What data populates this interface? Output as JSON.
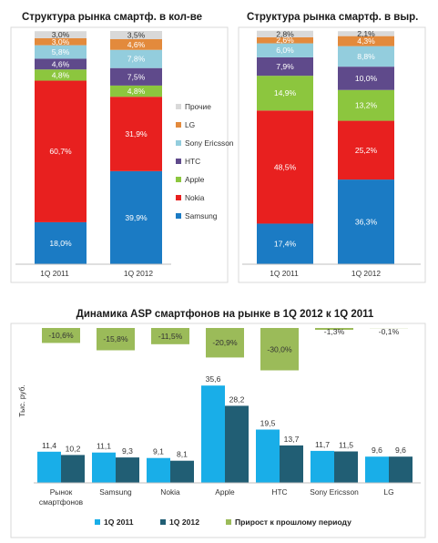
{
  "colors": {
    "samsung": "#1b7bc4",
    "nokia": "#e8201f",
    "apple": "#8cc63e",
    "htc": "#5f4a8b",
    "sony": "#93cddd",
    "lg": "#e38a3c",
    "other": "#d9d9d9",
    "asp_q1_2011": "#19aee8",
    "asp_q1_2012": "#215e74",
    "asp_growth": "#9bbb59"
  },
  "chart_data": [
    {
      "type": "bar",
      "stacked": true,
      "title": "Структура рынка смартф. в кол-ве",
      "categories": [
        "1Q 2011",
        "1Q 2012"
      ],
      "series": [
        {
          "name": "Samsung",
          "color_key": "samsung",
          "values": [
            18.0,
            39.9
          ],
          "labels": [
            "18,0%",
            "39,9%"
          ]
        },
        {
          "name": "Nokia",
          "color_key": "nokia",
          "values": [
            60.7,
            31.9
          ],
          "labels": [
            "60,7%",
            "31,9%"
          ]
        },
        {
          "name": "Apple",
          "color_key": "apple",
          "values": [
            4.8,
            4.8
          ],
          "labels": [
            "4,8%",
            "4,8%"
          ]
        },
        {
          "name": "HTC",
          "color_key": "htc",
          "values": [
            4.6,
            7.5
          ],
          "labels": [
            "4,6%",
            "7,5%"
          ]
        },
        {
          "name": "Sony Ericsson",
          "color_key": "sony",
          "values": [
            5.8,
            7.8
          ],
          "labels": [
            "5,8%",
            "7,8%"
          ]
        },
        {
          "name": "LG",
          "color_key": "lg",
          "values": [
            3.0,
            4.6
          ],
          "labels": [
            "3,0%",
            "4,6%"
          ]
        },
        {
          "name": "Прочие",
          "color_key": "other",
          "values": [
            3.0,
            3.5
          ],
          "labels": [
            "3,0%",
            "3,5%"
          ]
        }
      ],
      "legend": [
        "Прочие",
        "LG",
        "Sony Ericsson",
        "HTC",
        "Apple",
        "Nokia",
        "Samsung"
      ],
      "legend_position": "right"
    },
    {
      "type": "bar",
      "stacked": true,
      "title": "Структура рынка смартф. в выр.",
      "categories": [
        "1Q 2011",
        "1Q 2012"
      ],
      "series": [
        {
          "name": "Samsung",
          "color_key": "samsung",
          "values": [
            17.4,
            36.3
          ],
          "labels": [
            "17,4%",
            "36,3%"
          ]
        },
        {
          "name": "Nokia",
          "color_key": "nokia",
          "values": [
            48.5,
            25.2
          ],
          "labels": [
            "48,5%",
            "25,2%"
          ]
        },
        {
          "name": "Apple",
          "color_key": "apple",
          "values": [
            14.9,
            13.2
          ],
          "labels": [
            "14,9%",
            "13,2%"
          ]
        },
        {
          "name": "HTC",
          "color_key": "htc",
          "values": [
            7.9,
            10.0
          ],
          "labels": [
            "7,9%",
            "10,0%"
          ]
        },
        {
          "name": "Sony Ericsson",
          "color_key": "sony",
          "values": [
            6.0,
            8.8
          ],
          "labels": [
            "6,0%",
            "8,8%"
          ]
        },
        {
          "name": "LG",
          "color_key": "lg",
          "values": [
            2.6,
            4.3
          ],
          "labels": [
            "2,6%",
            "4,3%"
          ]
        },
        {
          "name": "Прочие",
          "color_key": "other",
          "values": [
            2.8,
            2.1
          ],
          "labels": [
            "2,8%",
            "2,1%"
          ]
        }
      ]
    },
    {
      "type": "bar",
      "title": "Динамика ASP смартфонов на рынке в 1Q 2012 к 1Q 2011",
      "ylabel": "Тыс. руб.",
      "categories": [
        "Рынок смартфонов",
        "Samsung",
        "Nokia",
        "Apple",
        "HTC",
        "Sony Ericsson",
        "LG"
      ],
      "category_lines": [
        [
          "Рынок",
          "смартфонов"
        ],
        [
          "Samsung"
        ],
        [
          "Nokia"
        ],
        [
          "Apple"
        ],
        [
          "HTC"
        ],
        [
          "Sony Ericsson"
        ],
        [
          "LG"
        ]
      ],
      "series": [
        {
          "name": "1Q 2011",
          "color_key": "asp_q1_2011",
          "values": [
            11.4,
            11.1,
            9.1,
            35.6,
            19.5,
            11.7,
            9.6
          ],
          "labels": [
            "11,4",
            "11,1",
            "9,1",
            "35,6",
            "19,5",
            "11,7",
            "9,6"
          ]
        },
        {
          "name": "1Q 2012",
          "color_key": "asp_q1_2012",
          "values": [
            10.2,
            9.3,
            8.1,
            28.2,
            13.7,
            11.5,
            9.6
          ],
          "labels": [
            "10,2",
            "9,3",
            "8,1",
            "28,2",
            "13,7",
            "11,5",
            "9,6"
          ]
        },
        {
          "name": "Прирост к прошлому периоду",
          "color_key": "asp_growth",
          "values": [
            -10.6,
            -15.8,
            -11.5,
            -20.9,
            -30.0,
            -1.3,
            -0.1
          ],
          "labels": [
            "-10,6%",
            "-15,8%",
            "-11,5%",
            "-20,9%",
            "-30,0%",
            "-1,3%",
            "-0,1%"
          ]
        }
      ],
      "legend": [
        "1Q 2011",
        "1Q 2012",
        "Прирост к прошлому периоду"
      ],
      "legend_position": "bottom"
    }
  ]
}
